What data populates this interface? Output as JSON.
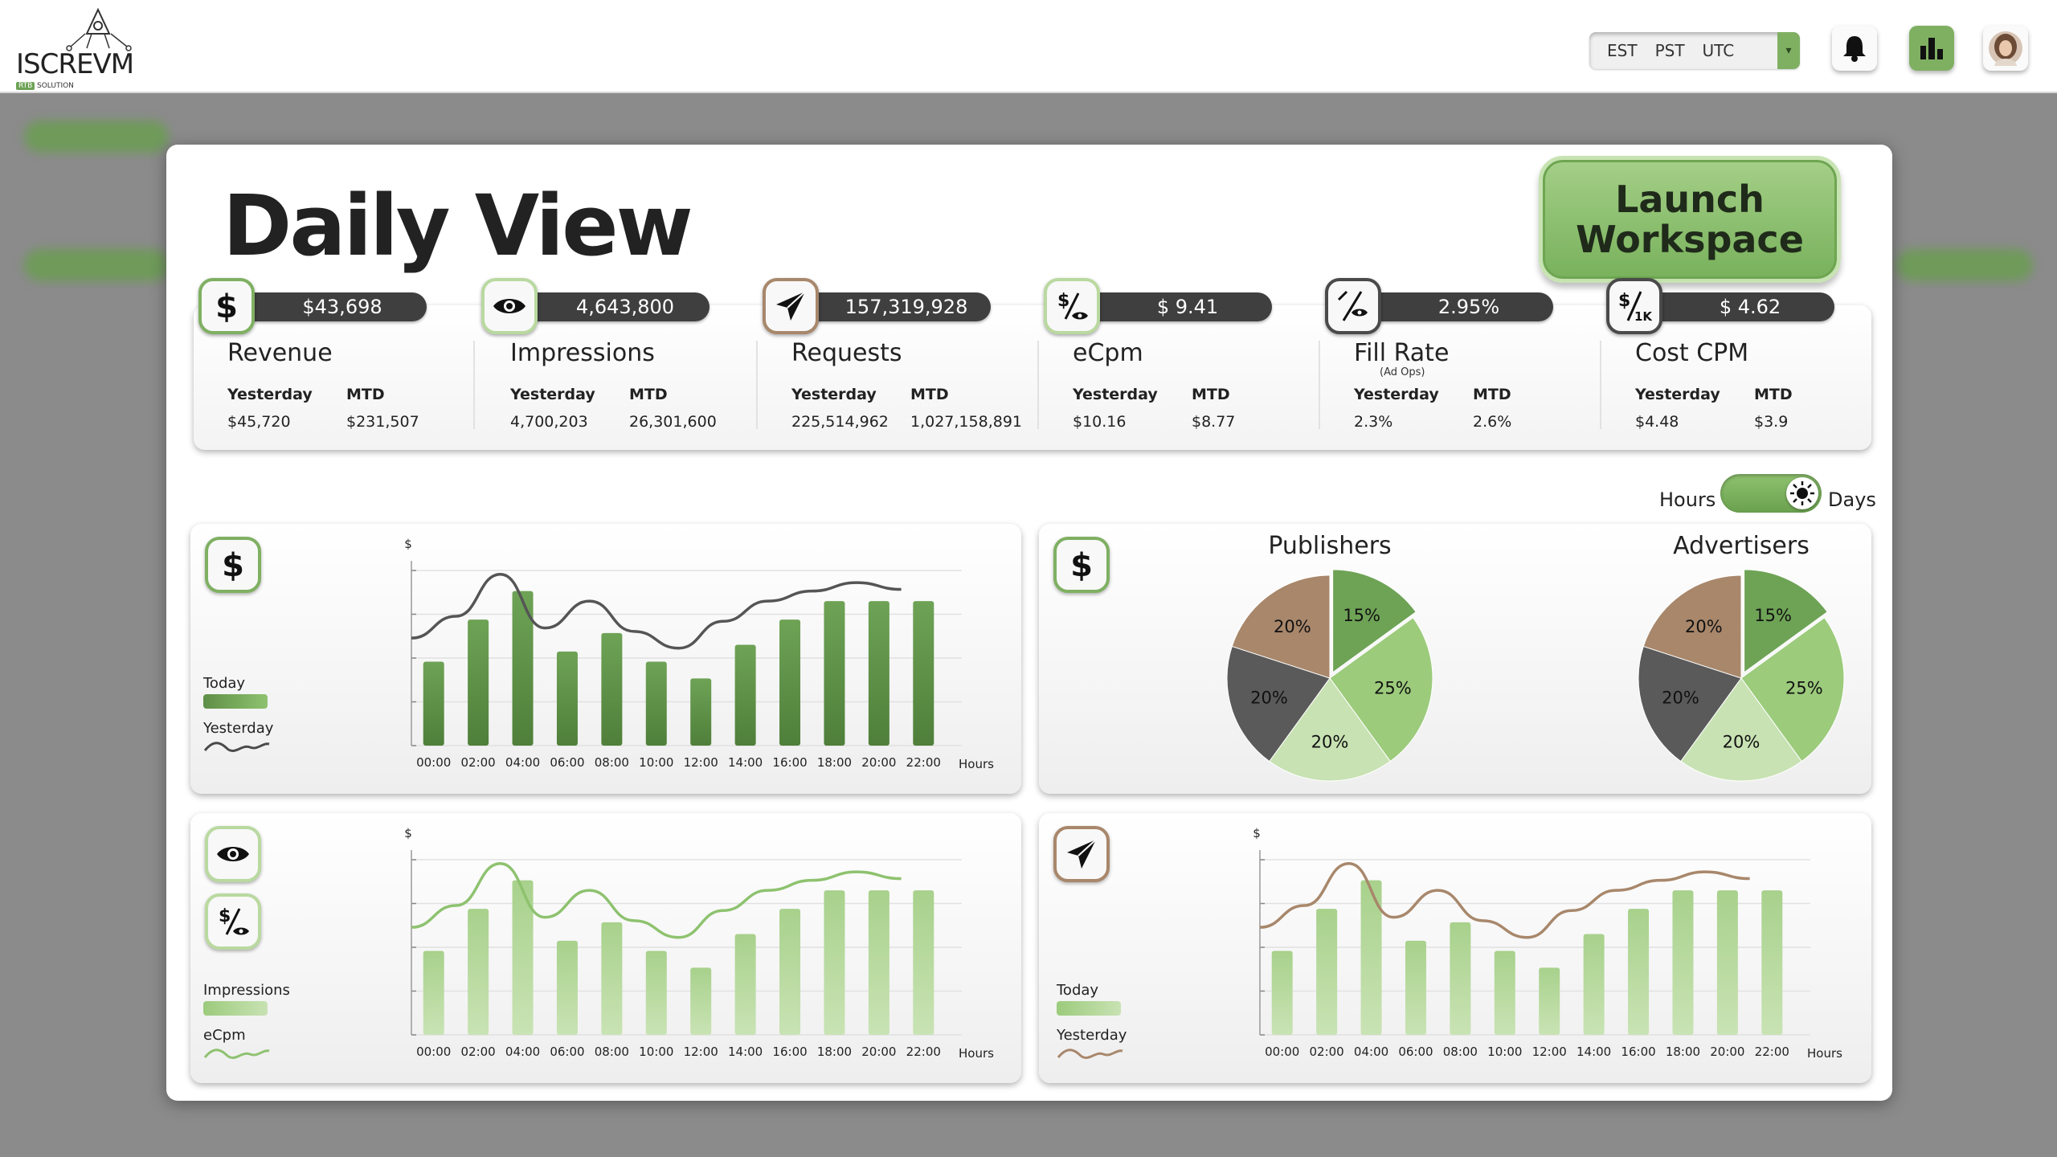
{
  "brand": {
    "logo_word": "ISCREVM",
    "logo_badge": "RTB",
    "logo_sub": "SOLUTION"
  },
  "timezones": {
    "options": [
      "EST",
      "PST",
      "UTC"
    ],
    "dropdown_glyph": "▾"
  },
  "topbar_icons": [
    "bell-icon",
    "bar-chart-icon",
    "user-avatar"
  ],
  "colors": {
    "accent_green": "#7fb062",
    "dark_green": "#5f8f47",
    "light_green": "#b9d9a0",
    "brown": "#a8876b",
    "dark_gray": "#5a5a5a",
    "pill": "#3f3f3f"
  },
  "page": {
    "title": "Daily View",
    "launch_button": "Launch Workspace"
  },
  "kpis": [
    {
      "icon": "dollar-icon",
      "value": "$43,698",
      "name": "Revenue",
      "sub": "",
      "label_1": "Yesterday",
      "label_2": "MTD",
      "value_1": "$45,720",
      "value_2": "$231,507",
      "ring": "#7fb062"
    },
    {
      "icon": "eye-icon",
      "value": "4,643,800",
      "name": "Impressions",
      "sub": "",
      "label_1": "Yesterday",
      "label_2": "MTD",
      "value_1": "4,700,203",
      "value_2": "26,301,600",
      "ring": "#b9d9a0"
    },
    {
      "icon": "paper-plane-icon",
      "value": "157,319,928",
      "name": "Requests",
      "sub": "",
      "label_1": "Yesterday",
      "label_2": "MTD",
      "value_1": "225,514,962",
      "value_2": "1,027,158,891",
      "ring": "#a8876b"
    },
    {
      "icon": "dollar-percent-icon",
      "value": "$ 9.41",
      "name": "eCpm",
      "sub": "",
      "label_1": "Yesterday",
      "label_2": "MTD",
      "value_1": "$10.16",
      "value_2": "$8.77",
      "ring": "#b9d9a0"
    },
    {
      "icon": "percent-eye-icon",
      "value": "2.95%",
      "name": "Fill Rate",
      "sub": "(Ad Ops)",
      "label_1": "Yesterday",
      "label_2": "MTD",
      "value_1": "2.3%",
      "value_2": "2.6%",
      "ring": "#4a4a4a"
    },
    {
      "icon": "dollar-per-1k-icon",
      "value": "$ 4.62",
      "name": "Cost CPM",
      "sub": "",
      "label_1": "Yesterday",
      "label_2": "MTD",
      "value_1": "$4.48",
      "value_2": "$3.9",
      "ring": "#4a4a4a"
    }
  ],
  "toggle": {
    "left": "Hours",
    "right": "Days",
    "state": "days",
    "knob_icon": "sun-icon"
  },
  "charts": {
    "revenue": {
      "legend_today": "Today",
      "legend_yesterday": "Yesterday",
      "y_unit": "$",
      "x_unit": "Hours"
    },
    "impressions": {
      "legend_today": "Impressions",
      "legend_yesterday": "eCpm",
      "y_unit": "$",
      "x_unit": "Hours"
    },
    "requests": {
      "legend_today": "Today",
      "legend_yesterday": "Yesterday",
      "y_unit": "$",
      "x_unit": "Hours"
    },
    "pies": {
      "left_title": "Publishers",
      "right_title": "Advertisers"
    }
  },
  "chart_data": [
    {
      "type": "bar",
      "categories": [
        "00:00",
        "02:00",
        "04:00",
        "06:00",
        "08:00",
        "10:00",
        "12:00",
        "14:00",
        "16:00",
        "18:00",
        "20:00",
        "22:00"
      ],
      "series": [
        {
          "name": "Today",
          "values": [
            50,
            75,
            92,
            56,
            67,
            50,
            40,
            60,
            75,
            86,
            86,
            86
          ]
        },
        {
          "name": "Yesterday",
          "values": [
            64,
            77,
            102,
            70,
            86,
            68,
            58,
            74,
            86,
            92,
            97,
            93
          ]
        }
      ],
      "title": "",
      "xlabel": "Hours",
      "ylabel": "$",
      "ylim": [
        0,
        110
      ],
      "series_types": [
        "bar",
        "line"
      ]
    },
    {
      "type": "bar",
      "categories": [
        "00:00",
        "02:00",
        "04:00",
        "06:00",
        "08:00",
        "10:00",
        "12:00",
        "14:00",
        "16:00",
        "18:00",
        "20:00",
        "22:00"
      ],
      "series": [
        {
          "name": "Impressions",
          "values": [
            50,
            75,
            92,
            56,
            67,
            50,
            40,
            60,
            75,
            86,
            86,
            86
          ]
        },
        {
          "name": "eCpm",
          "values": [
            64,
            77,
            102,
            70,
            86,
            68,
            58,
            74,
            86,
            92,
            97,
            93
          ]
        }
      ],
      "title": "",
      "xlabel": "Hours",
      "ylabel": "$",
      "ylim": [
        0,
        110
      ],
      "series_types": [
        "bar",
        "line"
      ]
    },
    {
      "type": "bar",
      "categories": [
        "00:00",
        "02:00",
        "04:00",
        "06:00",
        "08:00",
        "10:00",
        "12:00",
        "14:00",
        "16:00",
        "18:00",
        "20:00",
        "22:00"
      ],
      "series": [
        {
          "name": "Today",
          "values": [
            50,
            75,
            92,
            56,
            67,
            50,
            40,
            60,
            75,
            86,
            86,
            86
          ]
        },
        {
          "name": "Yesterday",
          "values": [
            64,
            77,
            102,
            70,
            86,
            68,
            58,
            74,
            86,
            92,
            97,
            93
          ]
        }
      ],
      "title": "",
      "xlabel": "Hours",
      "ylabel": "$",
      "ylim": [
        0,
        110
      ],
      "series_types": [
        "bar",
        "line"
      ]
    },
    {
      "type": "pie",
      "title": "Publishers",
      "slices": [
        {
          "label": "15%",
          "value": 15,
          "color": "#6ea356"
        },
        {
          "label": "25%",
          "value": 25,
          "color": "#9ccb7c"
        },
        {
          "label": "20%",
          "value": 20,
          "color": "#c8e2b3"
        },
        {
          "label": "20%",
          "value": 20,
          "color": "#5a5a5a"
        },
        {
          "label": "20%",
          "value": 20,
          "color": "#a8876b"
        }
      ]
    },
    {
      "type": "pie",
      "title": "Advertisers",
      "slices": [
        {
          "label": "15%",
          "value": 15,
          "color": "#6ea356"
        },
        {
          "label": "25%",
          "value": 25,
          "color": "#9ccb7c"
        },
        {
          "label": "20%",
          "value": 20,
          "color": "#c8e2b3"
        },
        {
          "label": "20%",
          "value": 20,
          "color": "#5a5a5a"
        },
        {
          "label": "20%",
          "value": 20,
          "color": "#a8876b"
        }
      ]
    }
  ]
}
